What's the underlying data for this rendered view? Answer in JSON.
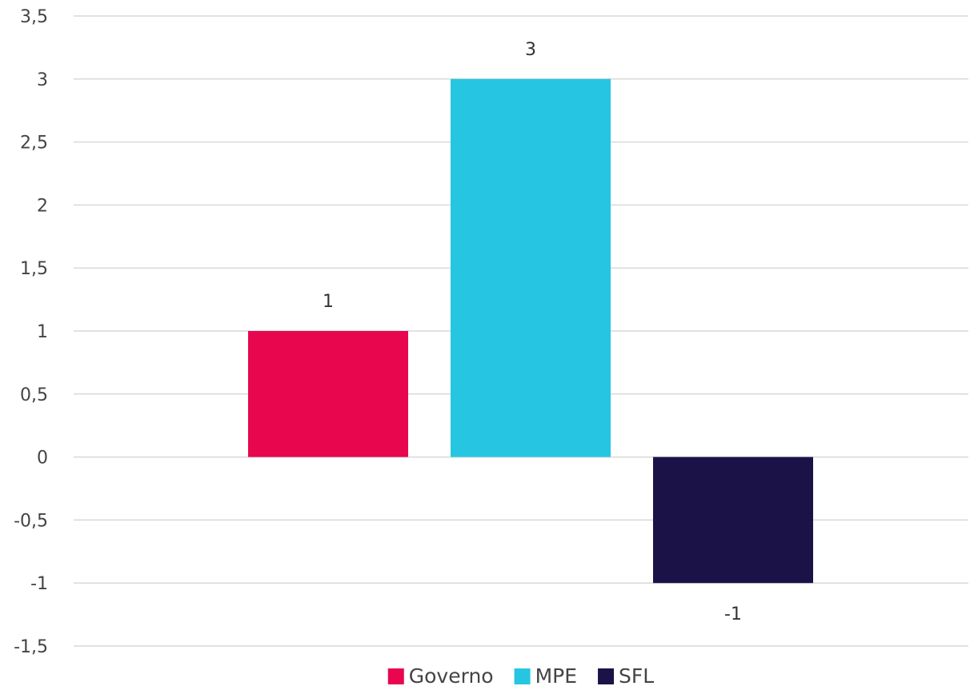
{
  "chart_data": {
    "type": "bar",
    "title": "",
    "xlabel": "",
    "ylabel": "",
    "ylim": [
      -1.5,
      3.5
    ],
    "y_ticks": [
      {
        "value": -1.5,
        "label": "-1,5"
      },
      {
        "value": -1,
        "label": "-1"
      },
      {
        "value": -0.5,
        "label": "-0,5"
      },
      {
        "value": 0,
        "label": "0"
      },
      {
        "value": 0.5,
        "label": "0,5"
      },
      {
        "value": 1,
        "label": "1"
      },
      {
        "value": 1.5,
        "label": "1,5"
      },
      {
        "value": 2,
        "label": "2"
      },
      {
        "value": 2.5,
        "label": "2,5"
      },
      {
        "value": 3,
        "label": "3"
      },
      {
        "value": 3.5,
        "label": "3,5"
      }
    ],
    "grid": true,
    "legend_position": "bottom",
    "series": [
      {
        "name": "Governo",
        "value": 1,
        "label": "1",
        "color": "#E8064F"
      },
      {
        "name": "MPE",
        "value": 3,
        "label": "3",
        "color": "#26C6E2"
      },
      {
        "name": "SFL",
        "value": -1,
        "label": "-1",
        "color": "#1B1248"
      }
    ]
  }
}
